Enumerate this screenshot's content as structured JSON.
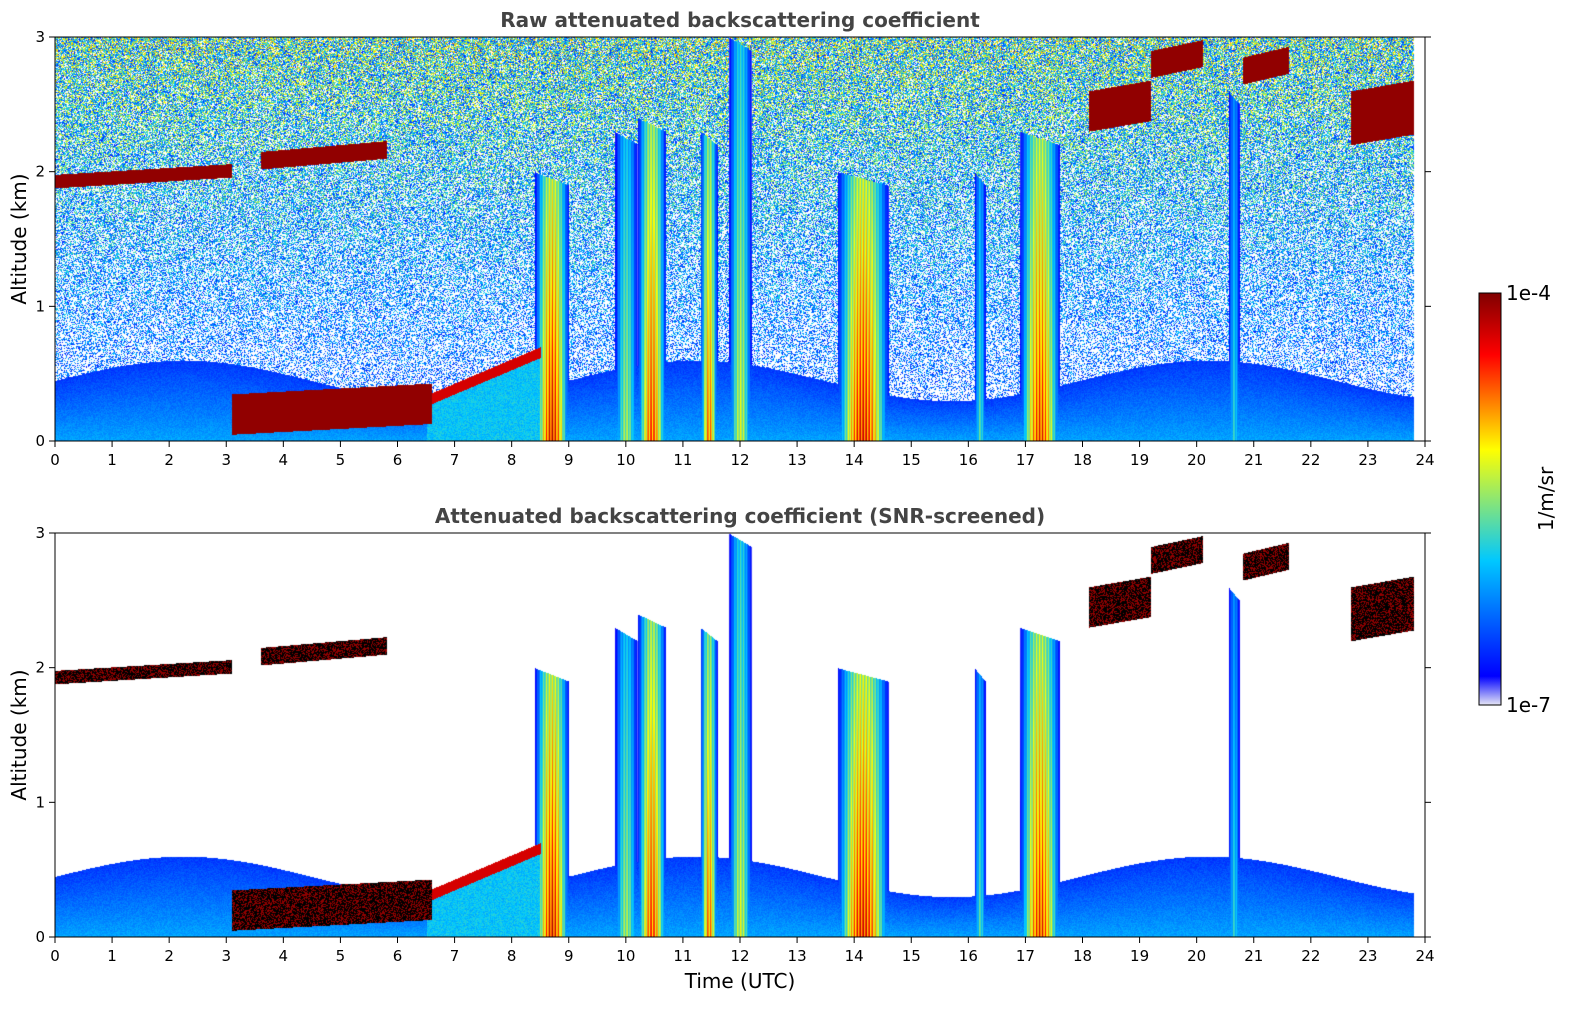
{
  "chart_data": [
    {
      "type": "heatmap",
      "title": "Raw attenuated backscattering coefficient",
      "xlabel": "",
      "ylabel": "Altitude (km)",
      "xlim": [
        0,
        24
      ],
      "ylim": [
        0,
        3
      ],
      "xticks": [
        "0",
        "1",
        "2",
        "3",
        "4",
        "5",
        "6",
        "7",
        "8",
        "9",
        "10",
        "11",
        "12",
        "13",
        "14",
        "15",
        "16",
        "17",
        "18",
        "19",
        "20",
        "21",
        "22",
        "23",
        "24"
      ],
      "yticks": [
        "0",
        "1",
        "2",
        "3"
      ],
      "screened": false
    },
    {
      "type": "heatmap",
      "title": "Attenuated backscattering coefficient (SNR-screened)",
      "xlabel": "Time (UTC)",
      "ylabel": "Altitude (km)",
      "xlim": [
        0,
        24
      ],
      "ylim": [
        0,
        3
      ],
      "xticks": [
        "0",
        "1",
        "2",
        "3",
        "4",
        "5",
        "6",
        "7",
        "8",
        "9",
        "10",
        "11",
        "12",
        "13",
        "14",
        "15",
        "16",
        "17",
        "18",
        "19",
        "20",
        "21",
        "22",
        "23",
        "24"
      ],
      "yticks": [
        "0",
        "1",
        "2",
        "3"
      ],
      "screened": true
    }
  ],
  "colorbar": {
    "label": "1/m/sr",
    "max_label": "1e-4",
    "min_label": "1e-7",
    "scale": "log",
    "range": [
      1e-07,
      0.0001
    ],
    "colormap": [
      "#e6e6f5",
      "#0000ff",
      "#00c8ff",
      "#ffff00",
      "#ff0000",
      "#800000"
    ]
  },
  "features": {
    "plumes": [
      {
        "t0": 8.4,
        "t1": 9.0,
        "top": 2.0,
        "peak": 0.97
      },
      {
        "t0": 9.8,
        "t1": 10.2,
        "top": 2.3,
        "peak": 0.6
      },
      {
        "t0": 10.2,
        "t1": 10.7,
        "top": 2.4,
        "peak": 0.9
      },
      {
        "t0": 11.3,
        "t1": 11.6,
        "top": 2.3,
        "peak": 0.85
      },
      {
        "t0": 11.8,
        "t1": 12.2,
        "top": 3.0,
        "peak": 0.65
      },
      {
        "t0": 13.7,
        "t1": 14.6,
        "top": 2.0,
        "peak": 0.97
      },
      {
        "t0": 16.1,
        "t1": 16.3,
        "top": 2.0,
        "peak": 0.5
      },
      {
        "t0": 16.9,
        "t1": 17.6,
        "top": 2.3,
        "peak": 0.92
      },
      {
        "t0": 20.55,
        "t1": 20.75,
        "top": 2.6,
        "peak": 0.45
      }
    ],
    "cloud_layers": [
      {
        "t0": 0.0,
        "t1": 3.1,
        "y0": 1.88,
        "y1": 1.98
      },
      {
        "t0": 3.6,
        "t1": 5.8,
        "y0": 2.02,
        "y1": 2.15
      },
      {
        "t0": 3.1,
        "t1": 6.6,
        "y0": 0.05,
        "y1": 0.35
      },
      {
        "t0": 18.1,
        "t1": 19.2,
        "y0": 2.3,
        "y1": 2.6
      },
      {
        "t0": 19.2,
        "t1": 20.1,
        "y0": 2.7,
        "y1": 2.9
      },
      {
        "t0": 20.8,
        "t1": 21.6,
        "y0": 2.65,
        "y1": 2.85
      },
      {
        "t0": 22.7,
        "t1": 23.8,
        "y0": 2.2,
        "y1": 2.6
      }
    ]
  }
}
